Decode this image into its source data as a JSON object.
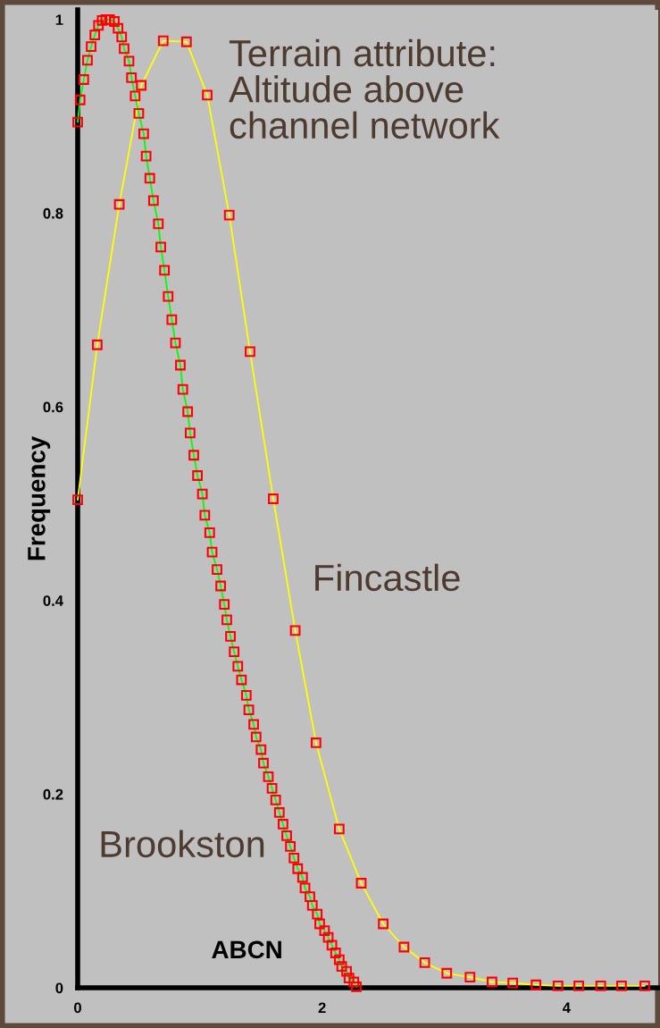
{
  "chart_data": {
    "type": "line",
    "annotations": [
      "Terrain attribute:\nAltitude above\nchannel network"
    ],
    "xlabel": "ABCN",
    "ylabel": "Frequency",
    "xlim": [
      0,
      4.75
    ],
    "ylim": [
      0,
      1.01
    ],
    "xticks": [
      0,
      2,
      4
    ],
    "yticks": [
      0,
      {
        "value": 0.2,
        "label": "0.2"
      },
      {
        "value": 0.4,
        "label": "0.4"
      },
      {
        "value": 0.6,
        "label": "0.6"
      },
      {
        "value": 0.8,
        "label": "0.8"
      },
      1
    ],
    "grid": false,
    "legend": false,
    "marker": "square",
    "line_style": "solid",
    "series": [
      {
        "name": "Fincastle",
        "color": "#ffff00",
        "x": [
          0,
          0.16,
          0.34,
          0.52,
          0.7,
          0.89,
          1.06,
          1.24,
          1.41,
          1.6,
          1.78,
          1.95,
          2.14,
          2.32,
          2.5,
          2.67,
          2.84,
          3.02,
          3.21,
          3.39,
          3.56,
          3.75,
          3.93,
          4.1,
          4.28,
          4.45,
          4.64
        ],
        "values": [
          0.504,
          0.664,
          0.809,
          0.932,
          0.978,
          0.977,
          0.922,
          0.798,
          0.657,
          0.505,
          0.369,
          0.253,
          0.164,
          0.108,
          0.066,
          0.042,
          0.026,
          0.015,
          0.011,
          0.006,
          0.005,
          0.003,
          0.002,
          0.002,
          0.002,
          0.002,
          0.002
        ]
      },
      {
        "name": "Brookston",
        "color": "#00ff00",
        "x": [
          0,
          0.02,
          0.05,
          0.08,
          0.11,
          0.14,
          0.17,
          0.2,
          0.23,
          0.26,
          0.3,
          0.33,
          0.36,
          0.38,
          0.42,
          0.44,
          0.47,
          0.5,
          0.54,
          0.56,
          0.59,
          0.62,
          0.66,
          0.68,
          0.71,
          0.74,
          0.77,
          0.8,
          0.84,
          0.86,
          0.9,
          0.92,
          0.95,
          0.98,
          1.02,
          1.04,
          1.08,
          1.1,
          1.14,
          1.17,
          1.2,
          1.22,
          1.25,
          1.28,
          1.31,
          1.34,
          1.38,
          1.4,
          1.44,
          1.46,
          1.5,
          1.52,
          1.56,
          1.59,
          1.62,
          1.65,
          1.68,
          1.71,
          1.74,
          1.77,
          1.8,
          1.84,
          1.86,
          1.9,
          1.92,
          1.96,
          1.98,
          2.02,
          2.05,
          2.08,
          2.11,
          2.14,
          2.16,
          2.2,
          2.22,
          2.26,
          2.28
        ],
        "values": [
          0.894,
          0.917,
          0.938,
          0.958,
          0.972,
          0.984,
          0.994,
          0.999,
          1.0,
          1.0,
          0.998,
          0.991,
          0.982,
          0.97,
          0.957,
          0.94,
          0.921,
          0.903,
          0.882,
          0.859,
          0.836,
          0.813,
          0.789,
          0.765,
          0.741,
          0.714,
          0.69,
          0.666,
          0.643,
          0.618,
          0.595,
          0.573,
          0.55,
          0.529,
          0.51,
          0.488,
          0.47,
          0.45,
          0.432,
          0.415,
          0.396,
          0.38,
          0.363,
          0.347,
          0.332,
          0.318,
          0.302,
          0.287,
          0.272,
          0.259,
          0.246,
          0.232,
          0.218,
          0.206,
          0.194,
          0.181,
          0.169,
          0.157,
          0.146,
          0.134,
          0.123,
          0.114,
          0.103,
          0.094,
          0.085,
          0.076,
          0.066,
          0.059,
          0.052,
          0.044,
          0.036,
          0.029,
          0.022,
          0.017,
          0.01,
          0.006,
          0.001
        ]
      }
    ]
  }
}
